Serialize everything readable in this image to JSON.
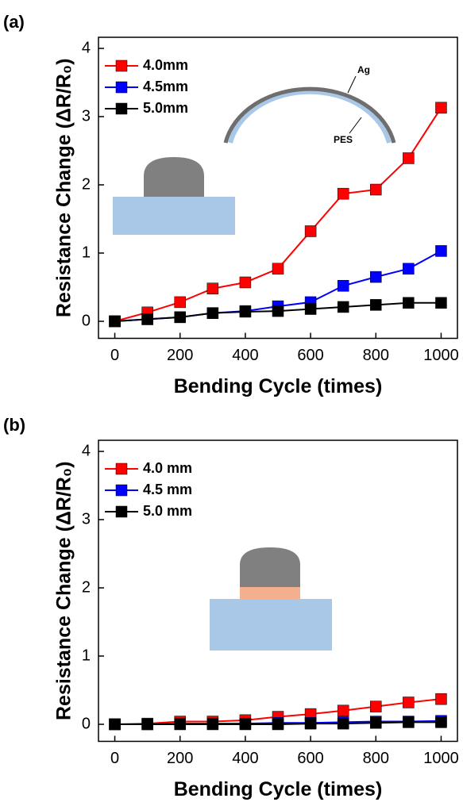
{
  "chart_data": [
    {
      "type": "line",
      "label": "(a)",
      "x_label": "Bending Cycle (times)",
      "y_label": "Resistance Change (ΔR/R₀)",
      "annotations": [
        "Ag",
        "PES"
      ],
      "x": [
        0,
        100,
        200,
        300,
        400,
        500,
        600,
        700,
        800,
        900,
        1000
      ],
      "series": [
        {
          "name": "4.0mm",
          "color": "#ff0000",
          "values": [
            0,
            0.13,
            0.28,
            0.48,
            0.57,
            0.77,
            1.32,
            1.87,
            1.93,
            2.39,
            3.13
          ]
        },
        {
          "name": "4.5mm",
          "color": "#0000ff",
          "values": [
            0,
            0.03,
            0.06,
            0.12,
            0.15,
            0.22,
            0.28,
            0.52,
            0.65,
            0.77,
            1.03
          ]
        },
        {
          "name": "5.0mm",
          "color": "#000000",
          "values": [
            0,
            0.03,
            0.06,
            0.12,
            0.14,
            0.15,
            0.18,
            0.21,
            0.24,
            0.27,
            0.27
          ]
        }
      ],
      "xlim": [
        -50,
        1050
      ],
      "xticks": [
        0,
        200,
        400,
        600,
        800,
        1000
      ],
      "ylim": [
        -0.25,
        4
      ],
      "yticks": [
        0,
        1,
        2,
        3,
        4
      ],
      "legend": "upper left"
    },
    {
      "type": "line",
      "label": "(b)",
      "x_label": "Bending Cycle (times)",
      "y_label": "Resistance Change (ΔR/R₀)",
      "x": [
        0,
        100,
        200,
        300,
        400,
        500,
        600,
        700,
        800,
        900,
        1000
      ],
      "series": [
        {
          "name": "4.0 mm",
          "color": "#ff0000",
          "values": [
            0,
            0.01,
            0.04,
            0.04,
            0.06,
            0.11,
            0.15,
            0.2,
            0.26,
            0.32,
            0.37
          ]
        },
        {
          "name": "4.5 mm",
          "color": "#0000ff",
          "values": [
            0,
            0,
            0.01,
            0.01,
            0.01,
            0.02,
            0.02,
            0.03,
            0.04,
            0.04,
            0.05
          ]
        },
        {
          "name": "5.0 mm",
          "color": "#000000",
          "values": [
            0,
            0,
            0,
            0,
            0,
            0,
            0.01,
            0.01,
            0.02,
            0.03,
            0.03
          ]
        }
      ],
      "xlim": [
        -50,
        1050
      ],
      "xticks": [
        0,
        200,
        400,
        600,
        800,
        1000
      ],
      "ylim": [
        -0.25,
        4
      ],
      "yticks": [
        0,
        1,
        2,
        3,
        4
      ],
      "legend": "upper left"
    }
  ]
}
